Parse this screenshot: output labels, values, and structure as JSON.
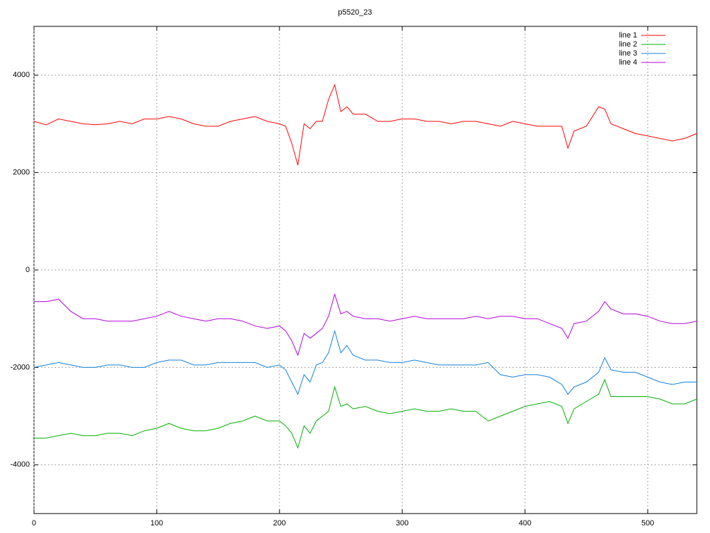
{
  "chart_data": {
    "type": "line",
    "title": "p5520_23",
    "x": [
      0,
      10,
      20,
      30,
      40,
      50,
      60,
      70,
      80,
      90,
      100,
      110,
      120,
      130,
      140,
      150,
      160,
      170,
      180,
      190,
      200,
      205,
      210,
      215,
      220,
      225,
      230,
      235,
      240,
      245,
      250,
      255,
      260,
      270,
      280,
      290,
      300,
      310,
      320,
      330,
      340,
      350,
      360,
      370,
      380,
      390,
      400,
      410,
      420,
      430,
      435,
      440,
      450,
      460,
      465,
      470,
      480,
      490,
      500,
      510,
      520,
      530,
      540
    ],
    "series": [
      {
        "name": "line 1",
        "color": "#ff0000",
        "values": [
          3050,
          2980,
          3100,
          3050,
          3000,
          2980,
          3000,
          3050,
          3000,
          3100,
          3100,
          3150,
          3100,
          3000,
          2950,
          2950,
          3050,
          3100,
          3150,
          3050,
          3000,
          2950,
          2600,
          2150,
          3000,
          2900,
          3050,
          3050,
          3500,
          3800,
          3250,
          3350,
          3200,
          3200,
          3050,
          3050,
          3100,
          3100,
          3050,
          3050,
          3000,
          3050,
          3050,
          3000,
          2950,
          3050,
          3000,
          2950,
          2950,
          2950,
          2500,
          2850,
          2950,
          3350,
          3300,
          3000,
          2900,
          2800,
          2750,
          2700,
          2650,
          2700,
          2800
        ]
      },
      {
        "name": "line 2",
        "color": "#00b000",
        "values": [
          -3450,
          -3450,
          -3400,
          -3350,
          -3400,
          -3400,
          -3350,
          -3350,
          -3400,
          -3300,
          -3250,
          -3150,
          -3250,
          -3300,
          -3300,
          -3250,
          -3150,
          -3100,
          -3000,
          -3100,
          -3100,
          -3200,
          -3350,
          -3650,
          -3200,
          -3350,
          -3100,
          -3000,
          -2900,
          -2400,
          -2800,
          -2750,
          -2850,
          -2800,
          -2900,
          -2950,
          -2900,
          -2850,
          -2900,
          -2900,
          -2850,
          -2900,
          -2900,
          -3100,
          -3000,
          -2900,
          -2800,
          -2750,
          -2700,
          -2800,
          -3150,
          -2850,
          -2700,
          -2550,
          -2250,
          -2600,
          -2600,
          -2600,
          -2600,
          -2650,
          -2750,
          -2750,
          -2650
        ]
      },
      {
        "name": "line 3",
        "color": "#1080e0",
        "values": [
          -2000,
          -1950,
          -1900,
          -1950,
          -2000,
          -2000,
          -1950,
          -1950,
          -2000,
          -2000,
          -1900,
          -1850,
          -1850,
          -1950,
          -1950,
          -1900,
          -1900,
          -1900,
          -1900,
          -2000,
          -1950,
          -2050,
          -2300,
          -2550,
          -2150,
          -2300,
          -1950,
          -1900,
          -1700,
          -1250,
          -1700,
          -1550,
          -1750,
          -1850,
          -1850,
          -1900,
          -1900,
          -1850,
          -1900,
          -1950,
          -1950,
          -1950,
          -1950,
          -1900,
          -2150,
          -2200,
          -2150,
          -2150,
          -2200,
          -2350,
          -2550,
          -2400,
          -2300,
          -2100,
          -1800,
          -2050,
          -2100,
          -2100,
          -2200,
          -2300,
          -2350,
          -2300,
          -2300
        ]
      },
      {
        "name": "line 4",
        "color": "#b000e0",
        "values": [
          -650,
          -650,
          -600,
          -850,
          -1000,
          -1000,
          -1050,
          -1050,
          -1050,
          -1000,
          -950,
          -850,
          -950,
          -1000,
          -1050,
          -1000,
          -1000,
          -1050,
          -1150,
          -1200,
          -1150,
          -1250,
          -1450,
          -1750,
          -1300,
          -1400,
          -1300,
          -1200,
          -950,
          -500,
          -900,
          -850,
          -950,
          -1000,
          -1000,
          -1050,
          -1000,
          -950,
          -1000,
          -1000,
          -1000,
          -1000,
          -950,
          -1000,
          -950,
          -950,
          -1000,
          -1000,
          -1100,
          -1200,
          -1400,
          -1100,
          -1050,
          -850,
          -650,
          -800,
          -900,
          -900,
          -950,
          -1050,
          -1100,
          -1100,
          -1050
        ]
      }
    ],
    "xlim": [
      0,
      540
    ],
    "xticks": [
      0,
      100,
      200,
      300,
      400,
      500
    ],
    "ylim": [
      -5000,
      5000
    ],
    "yticks": [
      -4000,
      -2000,
      0,
      2000,
      4000
    ],
    "grid": true,
    "legend": "top-right"
  }
}
